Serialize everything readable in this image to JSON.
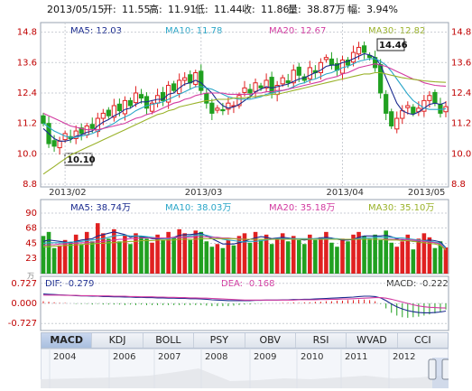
{
  "header": {
    "date": "2013/05/15",
    "open_label": "开:",
    "open": "11.55",
    "high_label": "高:",
    "high": "11.91",
    "low_label": "低:",
    "low": "11.44",
    "close_label": "收:",
    "close": "11.86",
    "volume_label": "量:",
    "volume": "38.87万",
    "change_label": "幅:",
    "change": "3.94%"
  },
  "colors": {
    "up": "#e02020",
    "down": "#20a020",
    "ma5": "#1a2b8f",
    "ma10": "#2aa6c8",
    "ma20": "#d23aa0",
    "ma30": "#9ab22a",
    "grid": "#c9cdd4",
    "axis_text": "#c00000"
  },
  "tabs": [
    {
      "label": "MACD",
      "active": true
    },
    {
      "label": "KDJ"
    },
    {
      "label": "BOLL"
    },
    {
      "label": "PSY"
    },
    {
      "label": "OBV"
    },
    {
      "label": "RSI"
    },
    {
      "label": "WVAD"
    },
    {
      "label": "CCI"
    }
  ],
  "timeline_years": [
    "2004",
    "2006",
    "2007",
    "2008",
    "2009",
    "2010",
    "2011",
    "2012"
  ],
  "chart_data": [
    {
      "type": "candlestick",
      "ylim": [
        8.8,
        15.0
      ],
      "yticks": [
        "14.8",
        "13.6",
        "12.4",
        "11.2",
        "10.0",
        "8.8"
      ],
      "xticks": [
        "2013/02",
        "2013/03",
        "2013/04",
        "2013/05"
      ],
      "legend": {
        "ma5": "MA5: 12.03",
        "ma10": "MA10: 11.78",
        "ma20": "MA20: 12.67",
        "ma30": "MA30: 12.82"
      },
      "annotations": {
        "high": "14.46",
        "low": "10.10"
      },
      "close": [
        11.2,
        10.4,
        10.3,
        10.5,
        10.8,
        10.6,
        10.9,
        10.8,
        11.1,
        11.0,
        11.4,
        11.6,
        11.5,
        11.9,
        11.7,
        12.1,
        11.9,
        12.4,
        12.2,
        11.8,
        12.0,
        12.3,
        12.1,
        12.7,
        12.5,
        12.9,
        13.0,
        12.8,
        13.2,
        12.5,
        12.0,
        11.6,
        11.8,
        11.7,
        12.0,
        11.9,
        12.3,
        12.6,
        12.4,
        12.8,
        12.6,
        12.9,
        12.4,
        12.7,
        13.0,
        12.8,
        13.3,
        13.1,
        12.9,
        13.4,
        13.2,
        13.6,
        13.8,
        13.5,
        13.3,
        13.7,
        13.5,
        14.0,
        14.2,
        14.0,
        13.8,
        13.4,
        12.4,
        11.6,
        11.1,
        11.4,
        11.7,
        11.9,
        11.6,
        11.8,
        12.1,
        12.3,
        12.0,
        11.6,
        11.86
      ],
      "ma5": [
        11.0,
        10.8,
        10.6,
        10.5,
        10.5,
        10.55,
        10.7,
        10.75,
        10.85,
        10.9,
        11.1,
        11.25,
        11.35,
        11.5,
        11.6,
        11.75,
        11.8,
        11.95,
        12.05,
        12.05,
        12.1,
        12.15,
        12.15,
        12.35,
        12.4,
        12.6,
        12.75,
        12.8,
        12.9,
        12.8,
        12.6,
        12.4,
        12.1,
        11.9,
        11.8,
        11.85,
        11.95,
        12.1,
        12.25,
        12.45,
        12.55,
        12.65,
        12.6,
        12.65,
        12.7,
        12.75,
        12.85,
        12.95,
        13.0,
        13.1,
        13.2,
        13.3,
        13.45,
        13.5,
        13.5,
        13.6,
        13.65,
        13.75,
        13.85,
        13.95,
        13.9,
        13.8,
        13.5,
        13.0,
        12.5,
        12.0,
        11.7,
        11.6,
        11.55,
        11.65,
        11.8,
        11.95,
        12.0,
        11.95,
        12.03
      ],
      "ma10": [
        11.2,
        11.05,
        10.9,
        10.8,
        10.7,
        10.65,
        10.65,
        10.7,
        10.75,
        10.8,
        10.9,
        11.0,
        11.1,
        11.2,
        11.35,
        11.45,
        11.55,
        11.7,
        11.8,
        11.9,
        11.95,
        12.0,
        12.05,
        12.15,
        12.25,
        12.35,
        12.45,
        12.55,
        12.65,
        12.65,
        12.6,
        12.55,
        12.45,
        12.35,
        12.25,
        12.2,
        12.15,
        12.15,
        12.15,
        12.2,
        12.25,
        12.35,
        12.4,
        12.45,
        12.5,
        12.55,
        12.65,
        12.75,
        12.8,
        12.9,
        12.95,
        13.05,
        13.15,
        13.2,
        13.3,
        13.4,
        13.45,
        13.55,
        13.65,
        13.7,
        13.75,
        13.75,
        13.65,
        13.5,
        13.25,
        12.95,
        12.65,
        12.35,
        12.1,
        11.95,
        11.8,
        11.75,
        11.75,
        11.75,
        11.78
      ],
      "ma20": [
        11.6,
        11.5,
        11.4,
        11.3,
        11.2,
        11.1,
        11.05,
        11.0,
        10.95,
        10.95,
        10.95,
        11.0,
        11.05,
        11.1,
        11.15,
        11.2,
        11.3,
        11.4,
        11.45,
        11.55,
        11.6,
        11.7,
        11.8,
        11.9,
        12.0,
        12.05,
        12.15,
        12.2,
        12.3,
        12.35,
        12.4,
        12.4,
        12.4,
        12.4,
        12.35,
        12.35,
        12.35,
        12.35,
        12.35,
        12.4,
        12.4,
        12.45,
        12.45,
        12.5,
        12.5,
        12.55,
        12.6,
        12.65,
        12.7,
        12.75,
        12.8,
        12.85,
        12.95,
        13.0,
        13.05,
        13.15,
        13.2,
        13.3,
        13.4,
        13.45,
        13.5,
        13.55,
        13.5,
        13.45,
        13.35,
        13.25,
        13.15,
        13.05,
        12.95,
        12.9,
        12.8,
        12.75,
        12.7,
        12.68,
        12.67
      ],
      "ma30": [
        9.2,
        9.35,
        9.5,
        9.65,
        9.8,
        9.95,
        10.05,
        10.15,
        10.25,
        10.35,
        10.45,
        10.55,
        10.65,
        10.75,
        10.85,
        10.95,
        11.05,
        11.15,
        11.25,
        11.35,
        11.45,
        11.55,
        11.6,
        11.7,
        11.75,
        11.85,
        11.9,
        11.95,
        12.0,
        12.05,
        12.1,
        12.1,
        12.15,
        12.15,
        12.15,
        12.2,
        12.2,
        12.2,
        12.25,
        12.25,
        12.3,
        12.3,
        12.35,
        12.35,
        12.4,
        12.45,
        12.5,
        12.55,
        12.6,
        12.65,
        12.7,
        12.75,
        12.8,
        12.85,
        12.9,
        12.95,
        13.0,
        13.05,
        13.1,
        13.15,
        13.15,
        13.2,
        13.2,
        13.15,
        13.1,
        13.05,
        13.0,
        12.97,
        12.94,
        12.91,
        12.88,
        12.86,
        12.84,
        12.83,
        12.82
      ]
    },
    {
      "type": "bar",
      "ylim": [
        0,
        90
      ],
      "yticks": [
        "90",
        "68",
        "45",
        "23"
      ],
      "unit_label": "万",
      "legend": {
        "ma5": "MA5: 38.74万",
        "ma10": "MA10: 38.03万",
        "ma20": "MA20: 35.18万",
        "ma30": "MA30: 35.10万"
      },
      "volume": [
        56,
        62,
        38,
        42,
        50,
        46,
        58,
        44,
        62,
        48,
        75,
        60,
        52,
        66,
        48,
        58,
        44,
        60,
        56,
        52,
        46,
        58,
        50,
        62,
        54,
        66,
        60,
        50,
        64,
        62,
        48,
        40,
        44,
        38,
        50,
        42,
        56,
        60,
        46,
        62,
        50,
        58,
        44,
        52,
        60,
        48,
        56,
        50,
        44,
        58,
        50,
        54,
        62,
        46,
        40,
        52,
        48,
        58,
        62,
        56,
        52,
        58,
        50,
        64,
        46,
        40,
        48,
        58,
        36,
        52,
        60,
        54,
        38,
        48,
        38.87
      ],
      "ma5": [
        48,
        50,
        49,
        48,
        47,
        46,
        48,
        50,
        51,
        52,
        56,
        58,
        60,
        62,
        60,
        58,
        54,
        56,
        55,
        54,
        52,
        52,
        52,
        53,
        54,
        57,
        58,
        58,
        59,
        60,
        56,
        52,
        48,
        44,
        44,
        44,
        46,
        48,
        51,
        53,
        55,
        54,
        52,
        53,
        54,
        53,
        52,
        51,
        50,
        51,
        52,
        53,
        54,
        53,
        51,
        50,
        50,
        51,
        54,
        56,
        56,
        56,
        56,
        57,
        55,
        52,
        50,
        49,
        48,
        48,
        49,
        50,
        49,
        47,
        38.74
      ],
      "ma10": [
        45,
        46,
        46,
        46,
        46,
        47,
        47,
        48,
        49,
        50,
        51,
        52,
        54,
        56,
        57,
        57,
        56,
        56,
        56,
        55,
        54,
        53,
        52,
        52,
        53,
        54,
        55,
        56,
        57,
        58,
        57,
        55,
        53,
        51,
        50,
        49,
        48,
        47,
        48,
        48,
        49,
        50,
        51,
        52,
        52,
        52,
        52,
        52,
        52,
        52,
        52,
        52,
        52,
        52,
        52,
        51,
        51,
        51,
        52,
        53,
        53,
        54,
        54,
        54,
        54,
        53,
        53,
        52,
        51,
        50,
        49,
        48,
        47,
        45,
        38.03
      ],
      "ma20": [
        42,
        43,
        43,
        44,
        44,
        45,
        45,
        46,
        46,
        47,
        47,
        48,
        49,
        50,
        51,
        51,
        52,
        52,
        53,
        53,
        53,
        53,
        53,
        53,
        54,
        54,
        54,
        54,
        55,
        55,
        55,
        54,
        54,
        53,
        53,
        52,
        52,
        51,
        51,
        51,
        51,
        51,
        51,
        51,
        51,
        51,
        51,
        51,
        51,
        51,
        51,
        51,
        51,
        51,
        51,
        51,
        51,
        51,
        51,
        51,
        51,
        51,
        51,
        51,
        51,
        51,
        51,
        50,
        50,
        49,
        48,
        47,
        46,
        44,
        35.18
      ],
      "ma30": [
        40,
        40,
        41,
        41,
        42,
        42,
        43,
        43,
        44,
        44,
        45,
        45,
        46,
        46,
        47,
        47,
        48,
        48,
        49,
        49,
        49,
        50,
        50,
        50,
        50,
        51,
        51,
        51,
        51,
        52,
        52,
        52,
        52,
        52,
        52,
        52,
        51,
        51,
        51,
        51,
        51,
        51,
        51,
        51,
        51,
        51,
        51,
        51,
        51,
        51,
        51,
        51,
        51,
        51,
        51,
        51,
        51,
        51,
        51,
        51,
        51,
        51,
        51,
        50,
        50,
        50,
        49,
        49,
        48,
        47,
        46,
        45,
        44,
        42,
        35.1
      ]
    },
    {
      "type": "macd",
      "ylim": [
        -0.85,
        0.85
      ],
      "yticks": [
        "0.727",
        "0.000",
        "-0.727"
      ],
      "legend": {
        "dif": "DIF: -0.279",
        "dea": "DEA: -0.168",
        "macd": "MACD: -0.222"
      },
      "dif": [
        0.34,
        0.33,
        0.32,
        0.31,
        0.3,
        0.29,
        0.28,
        0.27,
        0.27,
        0.26,
        0.26,
        0.25,
        0.25,
        0.24,
        0.24,
        0.23,
        0.23,
        0.22,
        0.22,
        0.21,
        0.21,
        0.2,
        0.2,
        0.19,
        0.19,
        0.18,
        0.18,
        0.17,
        0.17,
        0.16,
        0.15,
        0.13,
        0.12,
        0.11,
        0.1,
        0.1,
        0.1,
        0.1,
        0.1,
        0.11,
        0.11,
        0.12,
        0.12,
        0.12,
        0.13,
        0.13,
        0.14,
        0.14,
        0.15,
        0.15,
        0.16,
        0.17,
        0.18,
        0.19,
        0.2,
        0.21,
        0.22,
        0.23,
        0.25,
        0.26,
        0.26,
        0.25,
        0.2,
        0.1,
        -0.02,
        -0.12,
        -0.2,
        -0.26,
        -0.3,
        -0.33,
        -0.34,
        -0.34,
        -0.33,
        -0.31,
        -0.279
      ],
      "dea": [
        0.3,
        0.3,
        0.3,
        0.3,
        0.29,
        0.29,
        0.29,
        0.28,
        0.28,
        0.28,
        0.27,
        0.27,
        0.27,
        0.26,
        0.26,
        0.26,
        0.25,
        0.25,
        0.24,
        0.24,
        0.24,
        0.23,
        0.23,
        0.22,
        0.22,
        0.21,
        0.21,
        0.2,
        0.2,
        0.19,
        0.19,
        0.18,
        0.17,
        0.16,
        0.15,
        0.14,
        0.13,
        0.12,
        0.12,
        0.12,
        0.12,
        0.12,
        0.12,
        0.12,
        0.12,
        0.12,
        0.12,
        0.13,
        0.13,
        0.13,
        0.13,
        0.14,
        0.14,
        0.15,
        0.15,
        0.16,
        0.16,
        0.17,
        0.18,
        0.19,
        0.2,
        0.21,
        0.21,
        0.19,
        0.15,
        0.1,
        0.05,
        0.0,
        -0.05,
        -0.09,
        -0.12,
        -0.14,
        -0.15,
        -0.16,
        -0.168
      ],
      "macd": [
        0.08,
        0.06,
        0.04,
        0.02,
        0.02,
        0.0,
        -0.02,
        -0.02,
        -0.02,
        -0.04,
        -0.02,
        -0.04,
        -0.04,
        -0.04,
        -0.04,
        -0.06,
        -0.04,
        -0.06,
        -0.04,
        -0.06,
        -0.06,
        -0.06,
        -0.06,
        -0.06,
        -0.06,
        -0.06,
        -0.06,
        -0.06,
        -0.06,
        -0.06,
        -0.08,
        -0.1,
        -0.1,
        -0.1,
        -0.1,
        -0.08,
        -0.06,
        -0.04,
        -0.04,
        -0.02,
        -0.02,
        0.0,
        0.0,
        0.0,
        0.02,
        0.02,
        0.04,
        0.02,
        0.04,
        0.04,
        0.06,
        0.06,
        0.08,
        0.08,
        0.1,
        0.1,
        0.12,
        0.12,
        0.14,
        0.14,
        0.12,
        0.08,
        -0.02,
        -0.18,
        -0.34,
        -0.44,
        -0.5,
        -0.52,
        -0.5,
        -0.48,
        -0.44,
        -0.4,
        -0.36,
        -0.3,
        -0.222
      ]
    }
  ]
}
